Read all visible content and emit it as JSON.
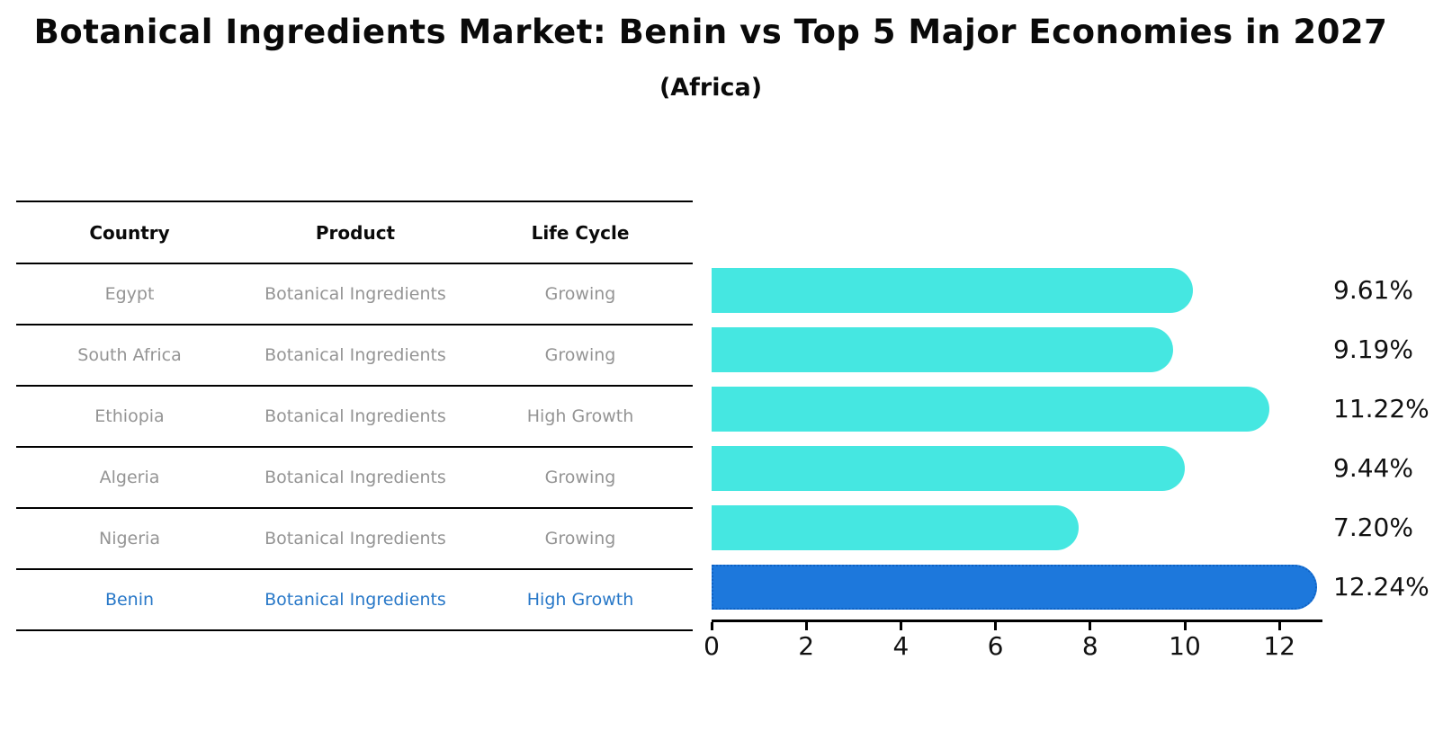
{
  "title": "Botanical Ingredients Market: Benin vs Top 5 Major Economies in 2027",
  "subtitle": "(Africa)",
  "table": {
    "headers": [
      "Country",
      "Product",
      "Life Cycle"
    ],
    "rows": [
      {
        "country": "Egypt",
        "product": "Botanical Ingredients",
        "life_cycle": "Growing",
        "highlighted": false
      },
      {
        "country": "South Africa",
        "product": "Botanical Ingredients",
        "life_cycle": "Growing",
        "highlighted": false
      },
      {
        "country": "Ethiopia",
        "product": "Botanical Ingredients",
        "life_cycle": "High Growth",
        "highlighted": false
      },
      {
        "country": "Algeria",
        "product": "Botanical Ingredients",
        "life_cycle": "Growing",
        "highlighted": false
      },
      {
        "country": "Nigeria",
        "product": "Botanical Ingredients",
        "life_cycle": "Growing",
        "highlighted": false
      },
      {
        "country": "Benin",
        "product": "Botanical Ingredients",
        "life_cycle": "High Growth",
        "highlighted": true
      }
    ]
  },
  "chart_data": {
    "type": "bar",
    "orientation": "horizontal",
    "title": "Botanical Ingredients Market: Benin vs Top 5 Major Economies in 2027 (Africa)",
    "categories": [
      "Egypt",
      "South Africa",
      "Ethiopia",
      "Algeria",
      "Nigeria",
      "Benin"
    ],
    "values": [
      9.61,
      9.19,
      11.22,
      9.44,
      7.2,
      12.24
    ],
    "value_labels": [
      "9.61%",
      "9.19%",
      "11.22%",
      "9.44%",
      "7.20%",
      "12.24%"
    ],
    "xticks": [
      0,
      2,
      4,
      6,
      8,
      10,
      12
    ],
    "xlim": [
      0,
      12.9
    ],
    "xlabel": "",
    "ylabel": "",
    "grid": false,
    "legend": false,
    "highlight_category": "Benin"
  },
  "colors": {
    "bar": "#45E7E1",
    "highlight_bar": "#1D78DC",
    "highlight_bar_border": "#0F62C4",
    "highlight_text": "#2878C8",
    "title_text": "#0a0a0a",
    "cell_text": "#949494",
    "rule": "#000000",
    "value_text": "#111111"
  }
}
